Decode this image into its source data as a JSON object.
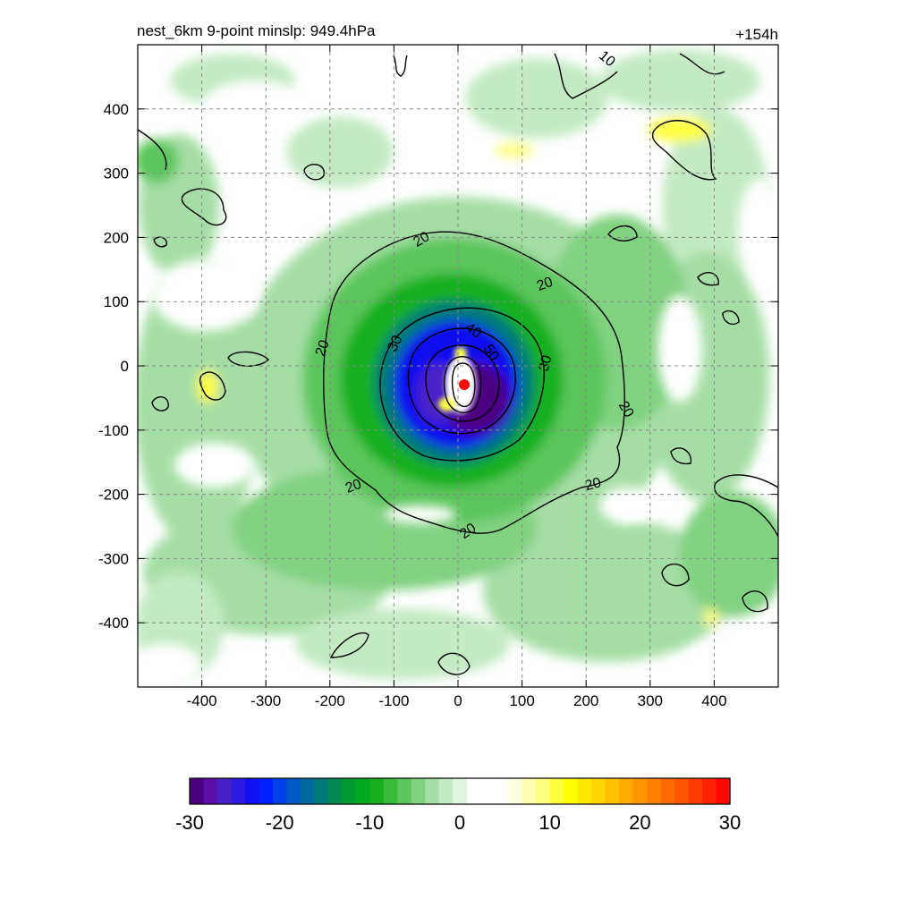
{
  "chart_data": {
    "type": "heatmap",
    "title": "nest_6km  9-point minslp: 949.4hPa",
    "forecast_hour": "+154h",
    "xlim": [
      -500,
      500
    ],
    "ylim": [
      -500,
      500
    ],
    "x_ticks": [
      -400,
      -300,
      -200,
      -100,
      0,
      100,
      200,
      300,
      400
    ],
    "y_ticks": [
      400,
      300,
      200,
      100,
      0,
      -100,
      -200,
      -300,
      -400
    ],
    "x_tick_labels": [
      "-400",
      "-300",
      "-200",
      "-100",
      "0",
      "100",
      "200",
      "300",
      "400"
    ],
    "y_tick_labels": [
      "400",
      "300",
      "200",
      "100",
      "0",
      "-100",
      "-200",
      "-300",
      "-400"
    ],
    "grid": true,
    "storm_center": [
      10,
      -28
    ],
    "contour_levels": [
      {
        "value": 20,
        "label": "20"
      },
      {
        "value": 30,
        "label": "30"
      },
      {
        "value": 40,
        "label": "40"
      },
      {
        "value": 50,
        "label": "50"
      }
    ],
    "outer_contour_label": "10",
    "colorbar": {
      "min": -30,
      "max": 30,
      "ticks": [
        -30,
        -20,
        -10,
        0,
        10,
        20,
        30
      ],
      "tick_labels": [
        "-30",
        "-20",
        "-10",
        "0",
        "10",
        "20",
        "30"
      ],
      "colors": [
        "#4b0082",
        "#5a10a8",
        "#4820c8",
        "#2f1ae0",
        "#1010f0",
        "#0020ff",
        "#0040e8",
        "#0058c8",
        "#006aa0",
        "#007a78",
        "#008a50",
        "#009a30",
        "#00aa20",
        "#18b020",
        "#38bb38",
        "#5cc65c",
        "#80d280",
        "#a4dea4",
        "#c4eac4",
        "#e0f4e0",
        "#ffffff",
        "#ffffff",
        "#ffffff",
        "#ffffe0",
        "#ffffb0",
        "#ffff80",
        "#ffff40",
        "#ffff00",
        "#ffe800",
        "#ffd400",
        "#ffc000",
        "#ffaa00",
        "#ff9600",
        "#ff8000",
        "#ff6a00",
        "#ff5400",
        "#ff3c00",
        "#ff2200",
        "#ff0800"
      ]
    }
  }
}
